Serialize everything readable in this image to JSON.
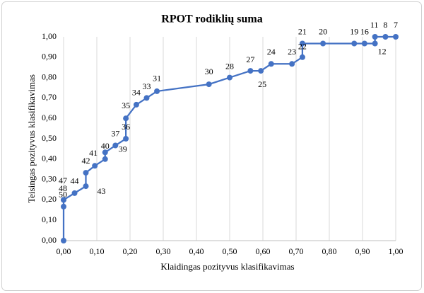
{
  "chart_data": {
    "type": "line",
    "title": "RPOT rodiklių suma",
    "x_label": "Klaidingas pozityvus klasifikavimas",
    "y_label": "Teisingas pozityvus klasifikavimas",
    "color": "#4472c4",
    "grid": "x",
    "x": [
      0,
      0,
      0,
      0,
      0.033,
      0.067,
      0.067,
      0.094,
      0.125,
      0.125,
      0.156,
      0.1875,
      0.1875,
      0.219,
      0.25,
      0.281,
      0.4375,
      0.5,
      0.5625,
      0.594,
      0.625,
      0.6875,
      0.719,
      0.719,
      0.781,
      0.875,
      0.906,
      0.9375,
      0.9375,
      0.969,
      1.0
    ],
    "values": [
      0,
      0.167,
      0.2,
      0.2,
      0.233,
      0.267,
      0.333,
      0.367,
      0.4,
      0.433,
      0.467,
      0.5,
      0.6,
      0.667,
      0.7,
      0.733,
      0.767,
      0.8,
      0.833,
      0.833,
      0.867,
      0.867,
      0.9,
      0.967,
      0.967,
      0.967,
      0.967,
      0.967,
      1.0,
      1.0,
      1.0
    ],
    "point_labels": [
      null,
      "50",
      "48",
      "47",
      "44",
      "43",
      "42",
      "41",
      "39",
      "40",
      "37",
      "36",
      "35",
      "34",
      "33",
      "31",
      "30",
      "28",
      "27",
      "25",
      "24",
      "23",
      "22",
      "21",
      "20",
      "19",
      "16",
      "12",
      "11",
      "8",
      "7"
    ],
    "xlim": [
      0,
      1
    ],
    "ylim": [
      0,
      1
    ],
    "xticks": [
      {
        "value": 0,
        "label": "0,00"
      },
      {
        "value": 0.1,
        "label": "0,10"
      },
      {
        "value": 0.2,
        "label": "0,20"
      },
      {
        "value": 0.3,
        "label": "0,30"
      },
      {
        "value": 0.4,
        "label": "0,40"
      },
      {
        "value": 0.5,
        "label": "0,50"
      },
      {
        "value": 0.6,
        "label": "0,60"
      },
      {
        "value": 0.7,
        "label": "0,70"
      },
      {
        "value": 0.8,
        "label": "0,80"
      },
      {
        "value": 0.9,
        "label": "0,90"
      },
      {
        "value": 1,
        "label": "1,00"
      }
    ],
    "yticks": [
      {
        "value": 0,
        "label": "0,00"
      },
      {
        "value": 0.1,
        "label": "0,10"
      },
      {
        "value": 0.2,
        "label": "0,20"
      },
      {
        "value": 0.3,
        "label": "0,30"
      },
      {
        "value": 0.4,
        "label": "0,40"
      },
      {
        "value": 0.5,
        "label": "0,50"
      },
      {
        "value": 0.6,
        "label": "0,60"
      },
      {
        "value": 0.7,
        "label": "0,70"
      },
      {
        "value": 0.8,
        "label": "0,80"
      },
      {
        "value": 0.9,
        "label": "0,90"
      },
      {
        "value": 1,
        "label": "1,00"
      }
    ]
  }
}
